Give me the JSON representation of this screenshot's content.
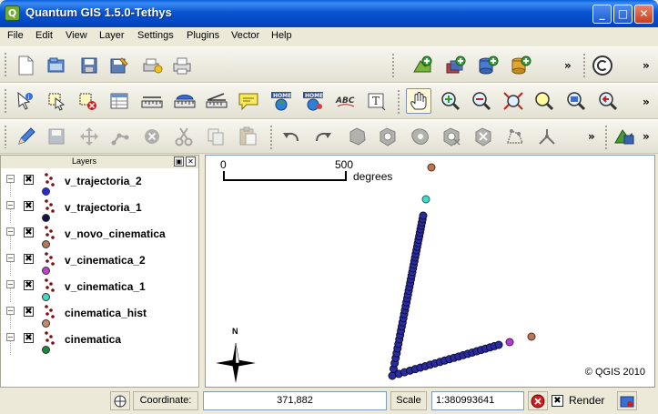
{
  "window": {
    "title": "Quantum GIS 1.5.0-Tethys",
    "app_icon_letter": "Q"
  },
  "window_controls": {
    "minimize": "_",
    "maximize": "□",
    "close": "✕"
  },
  "menu": [
    "File",
    "Edit",
    "View",
    "Layer",
    "Settings",
    "Plugins",
    "Vector",
    "Help"
  ],
  "toolbar_overflow": "»",
  "layers_panel": {
    "title": "Layers",
    "layers": [
      {
        "name": "v_trajectoria_2",
        "symbol_color": "#2a2ad0",
        "checked": "✖",
        "expander": "−"
      },
      {
        "name": "v_trajectoria_1",
        "symbol_color": "#10104a",
        "checked": "✖",
        "expander": "−"
      },
      {
        "name": "v_novo_cinematica",
        "symbol_color": "#b07a55",
        "checked": "✖",
        "expander": "−"
      },
      {
        "name": "v_cinematica_2",
        "symbol_color": "#c040d0",
        "checked": "✖",
        "expander": "−"
      },
      {
        "name": "v_cinematica_1",
        "symbol_color": "#4ad6c4",
        "checked": "✖",
        "expander": "−"
      },
      {
        "name": "cinematica_hist",
        "symbol_color": "#c48a6a",
        "checked": "✖",
        "expander": "−"
      },
      {
        "name": "cinematica",
        "symbol_color": "#1a8a3a",
        "checked": "✖",
        "expander": "−"
      }
    ]
  },
  "map": {
    "scalebar": {
      "start": "0",
      "end": "500",
      "unit": "degrees"
    },
    "north_arrow": "N",
    "copyright": "© QGIS 2010"
  },
  "statusbar": {
    "coordinate_label": "Coordinate:",
    "coordinate_value": "371,882",
    "scale_label": "Scale",
    "scale_value": "1:380993641",
    "render_label": "Render",
    "render_checked": "✖"
  },
  "colors": {
    "point_fill": "#2b2ba0",
    "point_stroke": "#0d0d3a",
    "brown": "#b5785a",
    "cyan": "#4ad6c4",
    "magenta": "#b040d0",
    "title_blue": "#0a55d0"
  }
}
